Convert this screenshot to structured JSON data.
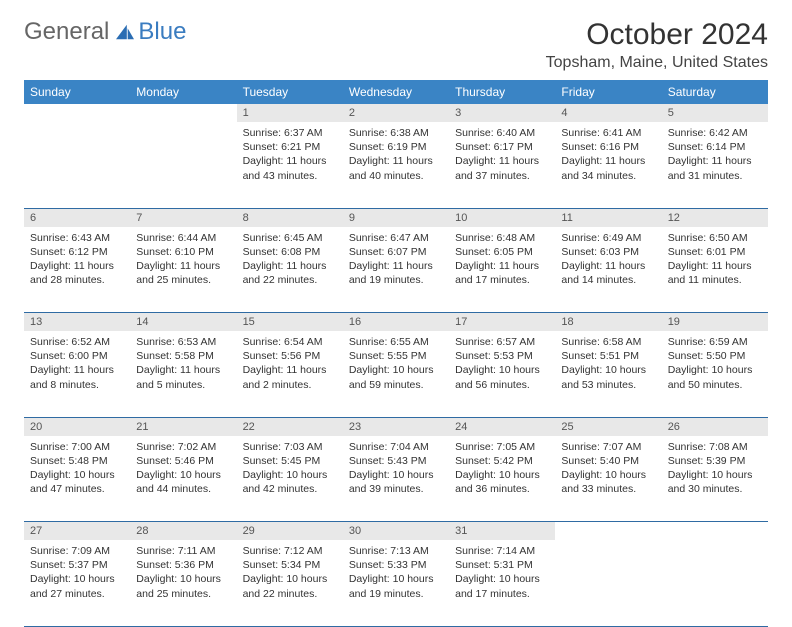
{
  "brand": {
    "general": "General",
    "blue": "Blue"
  },
  "title": "October 2024",
  "location": "Topsham, Maine, United States",
  "weekdays": [
    "Sunday",
    "Monday",
    "Tuesday",
    "Wednesday",
    "Thursday",
    "Friday",
    "Saturday"
  ],
  "colors": {
    "header_bg": "#3a84c5",
    "header_text": "#ffffff",
    "daynum_bg": "#e8e8e8",
    "border": "#2f6ba3"
  },
  "weeks": [
    [
      null,
      null,
      {
        "n": "1",
        "sr": "Sunrise: 6:37 AM",
        "ss": "Sunset: 6:21 PM",
        "dl": "Daylight: 11 hours and 43 minutes."
      },
      {
        "n": "2",
        "sr": "Sunrise: 6:38 AM",
        "ss": "Sunset: 6:19 PM",
        "dl": "Daylight: 11 hours and 40 minutes."
      },
      {
        "n": "3",
        "sr": "Sunrise: 6:40 AM",
        "ss": "Sunset: 6:17 PM",
        "dl": "Daylight: 11 hours and 37 minutes."
      },
      {
        "n": "4",
        "sr": "Sunrise: 6:41 AM",
        "ss": "Sunset: 6:16 PM",
        "dl": "Daylight: 11 hours and 34 minutes."
      },
      {
        "n": "5",
        "sr": "Sunrise: 6:42 AM",
        "ss": "Sunset: 6:14 PM",
        "dl": "Daylight: 11 hours and 31 minutes."
      }
    ],
    [
      {
        "n": "6",
        "sr": "Sunrise: 6:43 AM",
        "ss": "Sunset: 6:12 PM",
        "dl": "Daylight: 11 hours and 28 minutes."
      },
      {
        "n": "7",
        "sr": "Sunrise: 6:44 AM",
        "ss": "Sunset: 6:10 PM",
        "dl": "Daylight: 11 hours and 25 minutes."
      },
      {
        "n": "8",
        "sr": "Sunrise: 6:45 AM",
        "ss": "Sunset: 6:08 PM",
        "dl": "Daylight: 11 hours and 22 minutes."
      },
      {
        "n": "9",
        "sr": "Sunrise: 6:47 AM",
        "ss": "Sunset: 6:07 PM",
        "dl": "Daylight: 11 hours and 19 minutes."
      },
      {
        "n": "10",
        "sr": "Sunrise: 6:48 AM",
        "ss": "Sunset: 6:05 PM",
        "dl": "Daylight: 11 hours and 17 minutes."
      },
      {
        "n": "11",
        "sr": "Sunrise: 6:49 AM",
        "ss": "Sunset: 6:03 PM",
        "dl": "Daylight: 11 hours and 14 minutes."
      },
      {
        "n": "12",
        "sr": "Sunrise: 6:50 AM",
        "ss": "Sunset: 6:01 PM",
        "dl": "Daylight: 11 hours and 11 minutes."
      }
    ],
    [
      {
        "n": "13",
        "sr": "Sunrise: 6:52 AM",
        "ss": "Sunset: 6:00 PM",
        "dl": "Daylight: 11 hours and 8 minutes."
      },
      {
        "n": "14",
        "sr": "Sunrise: 6:53 AM",
        "ss": "Sunset: 5:58 PM",
        "dl": "Daylight: 11 hours and 5 minutes."
      },
      {
        "n": "15",
        "sr": "Sunrise: 6:54 AM",
        "ss": "Sunset: 5:56 PM",
        "dl": "Daylight: 11 hours and 2 minutes."
      },
      {
        "n": "16",
        "sr": "Sunrise: 6:55 AM",
        "ss": "Sunset: 5:55 PM",
        "dl": "Daylight: 10 hours and 59 minutes."
      },
      {
        "n": "17",
        "sr": "Sunrise: 6:57 AM",
        "ss": "Sunset: 5:53 PM",
        "dl": "Daylight: 10 hours and 56 minutes."
      },
      {
        "n": "18",
        "sr": "Sunrise: 6:58 AM",
        "ss": "Sunset: 5:51 PM",
        "dl": "Daylight: 10 hours and 53 minutes."
      },
      {
        "n": "19",
        "sr": "Sunrise: 6:59 AM",
        "ss": "Sunset: 5:50 PM",
        "dl": "Daylight: 10 hours and 50 minutes."
      }
    ],
    [
      {
        "n": "20",
        "sr": "Sunrise: 7:00 AM",
        "ss": "Sunset: 5:48 PM",
        "dl": "Daylight: 10 hours and 47 minutes."
      },
      {
        "n": "21",
        "sr": "Sunrise: 7:02 AM",
        "ss": "Sunset: 5:46 PM",
        "dl": "Daylight: 10 hours and 44 minutes."
      },
      {
        "n": "22",
        "sr": "Sunrise: 7:03 AM",
        "ss": "Sunset: 5:45 PM",
        "dl": "Daylight: 10 hours and 42 minutes."
      },
      {
        "n": "23",
        "sr": "Sunrise: 7:04 AM",
        "ss": "Sunset: 5:43 PM",
        "dl": "Daylight: 10 hours and 39 minutes."
      },
      {
        "n": "24",
        "sr": "Sunrise: 7:05 AM",
        "ss": "Sunset: 5:42 PM",
        "dl": "Daylight: 10 hours and 36 minutes."
      },
      {
        "n": "25",
        "sr": "Sunrise: 7:07 AM",
        "ss": "Sunset: 5:40 PM",
        "dl": "Daylight: 10 hours and 33 minutes."
      },
      {
        "n": "26",
        "sr": "Sunrise: 7:08 AM",
        "ss": "Sunset: 5:39 PM",
        "dl": "Daylight: 10 hours and 30 minutes."
      }
    ],
    [
      {
        "n": "27",
        "sr": "Sunrise: 7:09 AM",
        "ss": "Sunset: 5:37 PM",
        "dl": "Daylight: 10 hours and 27 minutes."
      },
      {
        "n": "28",
        "sr": "Sunrise: 7:11 AM",
        "ss": "Sunset: 5:36 PM",
        "dl": "Daylight: 10 hours and 25 minutes."
      },
      {
        "n": "29",
        "sr": "Sunrise: 7:12 AM",
        "ss": "Sunset: 5:34 PM",
        "dl": "Daylight: 10 hours and 22 minutes."
      },
      {
        "n": "30",
        "sr": "Sunrise: 7:13 AM",
        "ss": "Sunset: 5:33 PM",
        "dl": "Daylight: 10 hours and 19 minutes."
      },
      {
        "n": "31",
        "sr": "Sunrise: 7:14 AM",
        "ss": "Sunset: 5:31 PM",
        "dl": "Daylight: 10 hours and 17 minutes."
      },
      null,
      null
    ]
  ]
}
